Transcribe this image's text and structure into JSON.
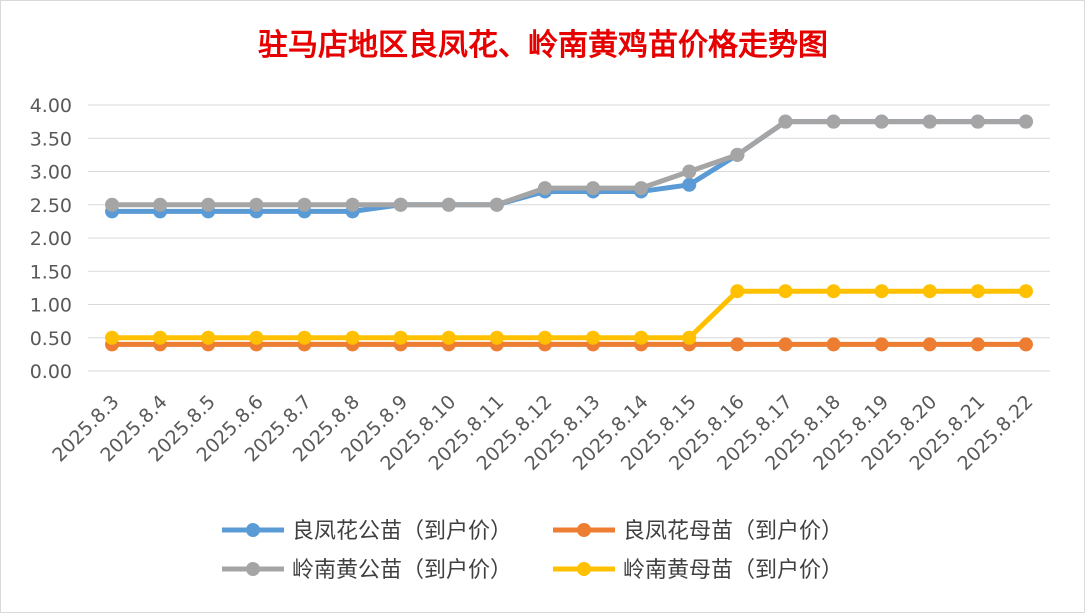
{
  "chart_data": {
    "type": "line",
    "title": "驻马店地区良凤花、岭南黄鸡苗价格走势图",
    "xlabel": "",
    "ylabel": "",
    "ylim": [
      0,
      4
    ],
    "y_ticks": [
      "0.00",
      "0.50",
      "1.00",
      "1.50",
      "2.00",
      "2.50",
      "3.00",
      "3.50",
      "4.00"
    ],
    "grid": "horizontal",
    "legend_position": "bottom",
    "categories": [
      "2025.8.3",
      "2025.8.4",
      "2025.8.5",
      "2025.8.6",
      "2025.8.7",
      "2025.8.8",
      "2025.8.9",
      "2025.8.10",
      "2025.8.11",
      "2025.8.12",
      "2025.8.13",
      "2025.8.14",
      "2025.8.15",
      "2025.8.16",
      "2025.8.17",
      "2025.8.18",
      "2025.8.19",
      "2025.8.20",
      "2025.8.21",
      "2025.8.22"
    ],
    "series": [
      {
        "name": "良凤花公苗（到户价）",
        "color": "#5b9bd5",
        "values": [
          2.4,
          2.4,
          2.4,
          2.4,
          2.4,
          2.4,
          2.5,
          2.5,
          2.5,
          2.7,
          2.7,
          2.7,
          2.8,
          3.25,
          3.75,
          3.75,
          3.75,
          3.75,
          3.75,
          3.75
        ]
      },
      {
        "name": "良凤花母苗（到户价）",
        "color": "#ed7d31",
        "values": [
          0.4,
          0.4,
          0.4,
          0.4,
          0.4,
          0.4,
          0.4,
          0.4,
          0.4,
          0.4,
          0.4,
          0.4,
          0.4,
          0.4,
          0.4,
          0.4,
          0.4,
          0.4,
          0.4,
          0.4
        ]
      },
      {
        "name": "岭南黄公苗（到户价）",
        "color": "#a5a5a5",
        "values": [
          2.5,
          2.5,
          2.5,
          2.5,
          2.5,
          2.5,
          2.5,
          2.5,
          2.5,
          2.75,
          2.75,
          2.75,
          3.0,
          3.25,
          3.75,
          3.75,
          3.75,
          3.75,
          3.75,
          3.75
        ]
      },
      {
        "name": "岭南黄母苗（到户价）",
        "color": "#ffc000",
        "values": [
          0.5,
          0.5,
          0.5,
          0.5,
          0.5,
          0.5,
          0.5,
          0.5,
          0.5,
          0.5,
          0.5,
          0.5,
          0.5,
          1.2,
          1.2,
          1.2,
          1.2,
          1.2,
          1.2,
          1.2
        ]
      }
    ],
    "legend_order": [
      0,
      1,
      2,
      3
    ]
  }
}
